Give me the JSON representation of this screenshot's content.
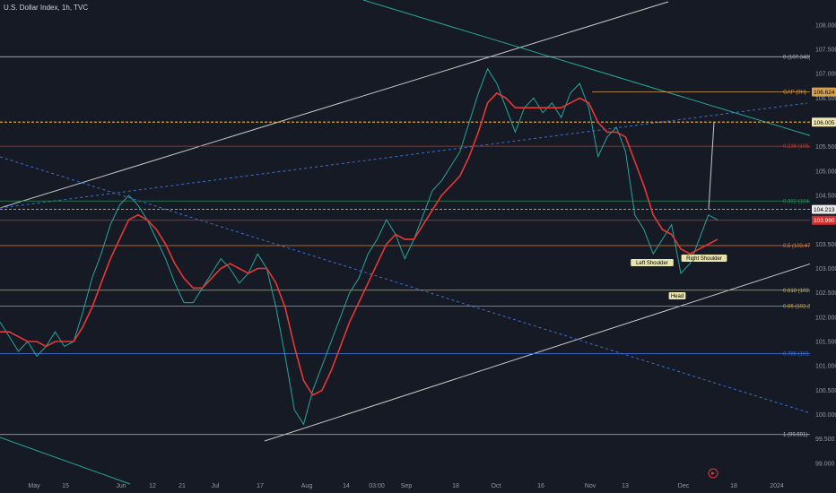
{
  "header": {
    "title": "U.S. Dollar Index, 1h, TVC"
  },
  "chart_data": {
    "type": "line",
    "title": "U.S. Dollar Index, 1h, TVC",
    "ylim": [
      98.85,
      108.2
    ],
    "xlabels": [
      "May",
      "15",
      "Jun",
      "12",
      "21",
      "Jul",
      "17",
      "Aug",
      "14",
      "03:00",
      "Sep",
      "18",
      "Oct",
      "16",
      "Nov",
      "13",
      "Dec",
      "18",
      "2024"
    ],
    "ylabels": [
      "108.000",
      "107.500",
      "107.000",
      "106.500",
      "106.000",
      "105.500",
      "105.000",
      "104.500",
      "104.000",
      "103.500",
      "103.000",
      "102.500",
      "102.000",
      "101.500",
      "101.000",
      "100.500",
      "100.000",
      "99.500",
      "99.000"
    ],
    "grid": false,
    "series": [
      {
        "values": [
          101.9,
          101.6,
          101.3,
          101.5,
          101.2,
          101.4,
          101.7,
          101.4,
          101.5,
          102.1,
          102.8,
          103.3,
          103.9,
          104.3,
          104.5,
          104.3,
          104.0,
          103.6,
          103.2,
          102.7,
          102.3,
          102.3,
          102.6,
          102.9,
          103.2,
          103.0,
          102.7,
          102.9,
          103.3,
          103.0,
          102.2,
          101.2,
          100.1,
          99.8,
          100.5,
          101.0,
          101.5,
          102.0,
          102.5,
          102.8,
          103.3,
          103.6,
          104.0,
          103.7,
          103.2,
          103.6,
          104.1,
          104.6,
          104.8,
          105.1,
          105.4,
          106.0,
          106.6,
          107.1,
          106.8,
          106.3,
          105.8,
          106.3,
          106.5,
          106.2,
          106.4,
          106.1,
          106.6,
          106.8,
          106.3,
          105.3,
          105.7,
          105.9,
          105.4,
          104.1,
          103.8,
          103.3,
          103.6,
          103.9,
          102.9,
          103.1,
          103.6,
          104.1,
          104.0
        ]
      },
      {
        "values": [
          101.7,
          101.7,
          101.6,
          101.5,
          101.5,
          101.4,
          101.5,
          101.5,
          101.5,
          101.8,
          102.2,
          102.7,
          103.2,
          103.6,
          104.0,
          104.1,
          104.0,
          103.8,
          103.5,
          103.1,
          102.8,
          102.6,
          102.6,
          102.8,
          103.0,
          103.1,
          103.0,
          102.9,
          103.0,
          103.0,
          102.7,
          102.2,
          101.4,
          100.7,
          100.4,
          100.5,
          100.9,
          101.4,
          101.9,
          102.3,
          102.7,
          103.1,
          103.5,
          103.7,
          103.6,
          103.6,
          103.9,
          104.2,
          104.5,
          104.7,
          104.9,
          105.3,
          105.8,
          106.4,
          106.6,
          106.5,
          106.3,
          106.3,
          106.3,
          106.3,
          106.3,
          106.3,
          106.4,
          106.5,
          106.4,
          106.0,
          105.8,
          105.8,
          105.7,
          105.2,
          104.7,
          104.1,
          103.8,
          103.7,
          103.4,
          103.3,
          103.4,
          103.5,
          103.6
        ]
      }
    ],
    "levels": [
      {
        "value": 107.348,
        "label": "0 (107.348)",
        "color": "#b2b5be"
      },
      {
        "value": 106.624,
        "label": "GAP (9H)",
        "color": "#d39a4a"
      },
      {
        "value": 106.005,
        "label": "",
        "color": "#e0a030"
      },
      {
        "value": 105.51,
        "label": "0.236 (105.510)",
        "color": "#c0392b"
      },
      {
        "value": 104.385,
        "label": "0.382 (104.385)",
        "color": "#2e8b57"
      },
      {
        "value": 104.213,
        "label": "",
        "color": "#c8c8c8"
      },
      {
        "value": 103.99,
        "label": "",
        "color": "#d32f2f"
      },
      {
        "value": 103.47,
        "label": "0.5 (103.470)",
        "color": "#e07a3a"
      },
      {
        "value": 102.554,
        "label": "0.618 (102.554)",
        "color": "#c9b037"
      },
      {
        "value": 102.228,
        "label": "0.66 (102.228)",
        "color": "#c9a227"
      },
      {
        "value": 101.251,
        "label": "0.786 (101.251)",
        "color": "#3d6fd1"
      },
      {
        "value": 99.591,
        "label": "1 (99.591)",
        "color": "#b2b5be"
      }
    ],
    "price_badges": [
      {
        "value": 106.624,
        "text": "106.624",
        "bg": "#d8a050",
        "fg": "#000"
      },
      {
        "value": 106.005,
        "text": "106.005",
        "bg": "#f0e6b0",
        "fg": "#000"
      },
      {
        "value": 104.213,
        "text": "104.213",
        "bg": "#e8e8e8",
        "fg": "#000"
      },
      {
        "value": 103.99,
        "text": "103.990",
        "bg": "#d32f2f",
        "fg": "#fff"
      }
    ],
    "annotations": [
      "Left Shoulder",
      "Head",
      "Right Shoulder"
    ]
  },
  "colors": {
    "price": "#26a69a",
    "ma": "#e53935",
    "background": "#161a25"
  }
}
